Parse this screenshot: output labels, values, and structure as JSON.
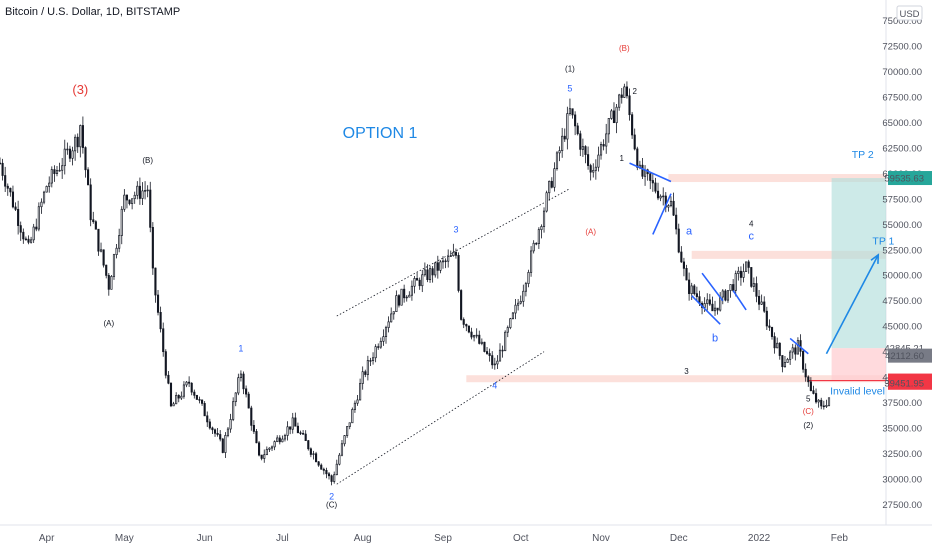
{
  "header": {
    "title": "Bitcoin / U.S. Dollar, 1D, BITSTAMP",
    "currency": "USD"
  },
  "colors": {
    "candle": "#131722",
    "wave_blue": "#2962ff",
    "wave_red": "#e53935",
    "tp_zone": "#b2dfdb",
    "sl_zone": "#ffcdd2",
    "level_band": "#fbd5cf",
    "arrow": "#1e88e5",
    "tag_green": "#26a69a",
    "tag_dark": "#787b86",
    "tag_red": "#f23645"
  },
  "chart_data": {
    "type": "candlestick",
    "title": "Bitcoin / U.S. Dollar, 1D, BITSTAMP",
    "ylabel": "USD",
    "y_axis": {
      "ticks": [
        27500,
        30000,
        32500,
        35000,
        37500,
        40000,
        42500,
        45000,
        47500,
        50000,
        52500,
        55000,
        57500,
        60000,
        62500,
        65000,
        67500,
        70000,
        72500,
        75000
      ],
      "tick_labels": [
        "27500.00",
        "30000.00",
        "32500.00",
        "35000.00",
        "37500.00",
        "40000.00",
        "42500.00",
        "45000.00",
        "47500.00",
        "50000.00",
        "52500.00",
        "55000.00",
        "57500.00",
        "60000.00",
        "62500.00",
        "65000.00",
        "67500.00",
        "70000.00",
        "72500.00",
        "75000.00"
      ],
      "range": [
        25500,
        77000
      ]
    },
    "x_axis": {
      "labels": [
        "Apr",
        "May",
        "Jun",
        "Jul",
        "Aug",
        "Sep",
        "Oct",
        "Nov",
        "Dec",
        "2022",
        "Feb"
      ],
      "range": [
        "2021-03-14",
        "2022-02-19"
      ]
    },
    "price_path": [
      [
        "2021-03-14",
        61000
      ],
      [
        "2021-03-25",
        52500
      ],
      [
        "2021-04-01",
        58800
      ],
      [
        "2021-04-13",
        63500
      ],
      [
        "2021-04-14",
        64800
      ],
      [
        "2021-04-18",
        56000
      ],
      [
        "2021-04-25",
        49000
      ],
      [
        "2021-05-01",
        57500
      ],
      [
        "2021-05-10",
        58500
      ],
      [
        "2021-05-12",
        50000
      ],
      [
        "2021-05-19",
        37000
      ],
      [
        "2021-05-26",
        39500
      ],
      [
        "2021-06-08",
        33000
      ],
      [
        "2021-06-15",
        40500
      ],
      [
        "2021-06-22",
        32000
      ],
      [
        "2021-07-05",
        35500
      ],
      [
        "2021-07-20",
        29800
      ],
      [
        "2021-08-01",
        40000
      ],
      [
        "2021-08-14",
        47500
      ],
      [
        "2021-08-23",
        49500
      ],
      [
        "2021-09-06",
        52000
      ],
      [
        "2021-09-08",
        46000
      ],
      [
        "2021-09-21",
        41000
      ],
      [
        "2021-10-01",
        48000
      ],
      [
        "2021-10-20",
        66000
      ],
      [
        "2021-10-28",
        60000
      ],
      [
        "2021-11-10",
        68500
      ],
      [
        "2021-11-16",
        60000
      ],
      [
        "2021-11-28",
        57000
      ],
      [
        "2021-12-04",
        49000
      ],
      [
        "2021-12-14",
        46500
      ],
      [
        "2021-12-27",
        50800
      ],
      [
        "2022-01-10",
        41500
      ],
      [
        "2022-01-16",
        43000
      ],
      [
        "2022-01-21",
        38500
      ],
      [
        "2022-01-25",
        36900
      ],
      [
        "2022-01-28",
        38000
      ]
    ],
    "horizontal_levels": [
      {
        "name": "tp2-zone",
        "value": 59535.63
      },
      {
        "name": "tp1-zone",
        "value": 52000
      },
      {
        "name": "invalid-level",
        "value": 39667.96
      }
    ],
    "price_tags": [
      {
        "label": "59535.63",
        "value": 59535.63,
        "style": "green"
      },
      {
        "label": "42845.21",
        "value": 42845.21,
        "style": "plain"
      },
      {
        "label": "09:11:07",
        "value": 41800,
        "style": "plain"
      },
      {
        "label": "42112.60",
        "value": 42112.6,
        "style": "dark"
      },
      {
        "label": "39667.96",
        "value": 39667.96,
        "style": "red"
      },
      {
        "label": "39451.95",
        "value": 39451.95,
        "style": "red"
      }
    ],
    "annotations": {
      "option": "OPTION 1",
      "tp1": "TP 1",
      "tp2": "TP 2",
      "invalid": "Invalid level",
      "waves": [
        {
          "text": "(3)",
          "date": "2021-04-14",
          "price": 67800,
          "color": "red",
          "size": 13
        },
        {
          "text": "(A)",
          "date": "2021-04-25",
          "price": 45000,
          "color": "black",
          "size": 8
        },
        {
          "text": "(B)",
          "date": "2021-05-10",
          "price": 61000,
          "color": "black",
          "size": 8
        },
        {
          "text": "(C)",
          "date": "2021-07-20",
          "price": 27200,
          "color": "black",
          "size": 8
        },
        {
          "text": "1",
          "date": "2021-06-15",
          "price": 42500,
          "color": "blue",
          "size": 9
        },
        {
          "text": "2",
          "date": "2021-07-20",
          "price": 28000,
          "color": "blue",
          "size": 9
        },
        {
          "text": "3",
          "date": "2021-09-06",
          "price": 54200,
          "color": "blue",
          "size": 9
        },
        {
          "text": "4",
          "date": "2021-09-21",
          "price": 38900,
          "color": "blue",
          "size": 9
        },
        {
          "text": "5",
          "date": "2021-10-20",
          "price": 68000,
          "color": "blue",
          "size": 9
        },
        {
          "text": "(1)",
          "date": "2021-10-20",
          "price": 70000,
          "color": "black",
          "size": 8
        },
        {
          "text": "(B)",
          "date": "2021-11-10",
          "price": 72000,
          "color": "red",
          "size": 8
        },
        {
          "text": "(A)",
          "date": "2021-10-28",
          "price": 54000,
          "color": "red",
          "size": 8
        },
        {
          "text": "2",
          "date": "2021-11-14",
          "price": 67800,
          "color": "black",
          "size": 8
        },
        {
          "text": "1",
          "date": "2021-11-09",
          "price": 61200,
          "color": "black",
          "size": 8
        },
        {
          "text": "3",
          "date": "2021-12-04",
          "price": 40300,
          "color": "black",
          "size": 8
        },
        {
          "text": "a",
          "date": "2021-12-05",
          "price": 54000,
          "color": "blue",
          "size": 11
        },
        {
          "text": "b",
          "date": "2021-12-15",
          "price": 43500,
          "color": "blue",
          "size": 11
        },
        {
          "text": "4",
          "date": "2021-12-29",
          "price": 54800,
          "color": "black",
          "size": 8
        },
        {
          "text": "c",
          "date": "2021-12-29",
          "price": 53500,
          "color": "blue",
          "size": 11
        },
        {
          "text": "5",
          "date": "2022-01-20",
          "price": 37600,
          "color": "black",
          "size": 8
        },
        {
          "text": "(C)",
          "date": "2022-01-20",
          "price": 36400,
          "color": "red",
          "size": 8
        },
        {
          "text": "(2)",
          "date": "2022-01-20",
          "price": 35000,
          "color": "black",
          "size": 8
        }
      ]
    }
  }
}
